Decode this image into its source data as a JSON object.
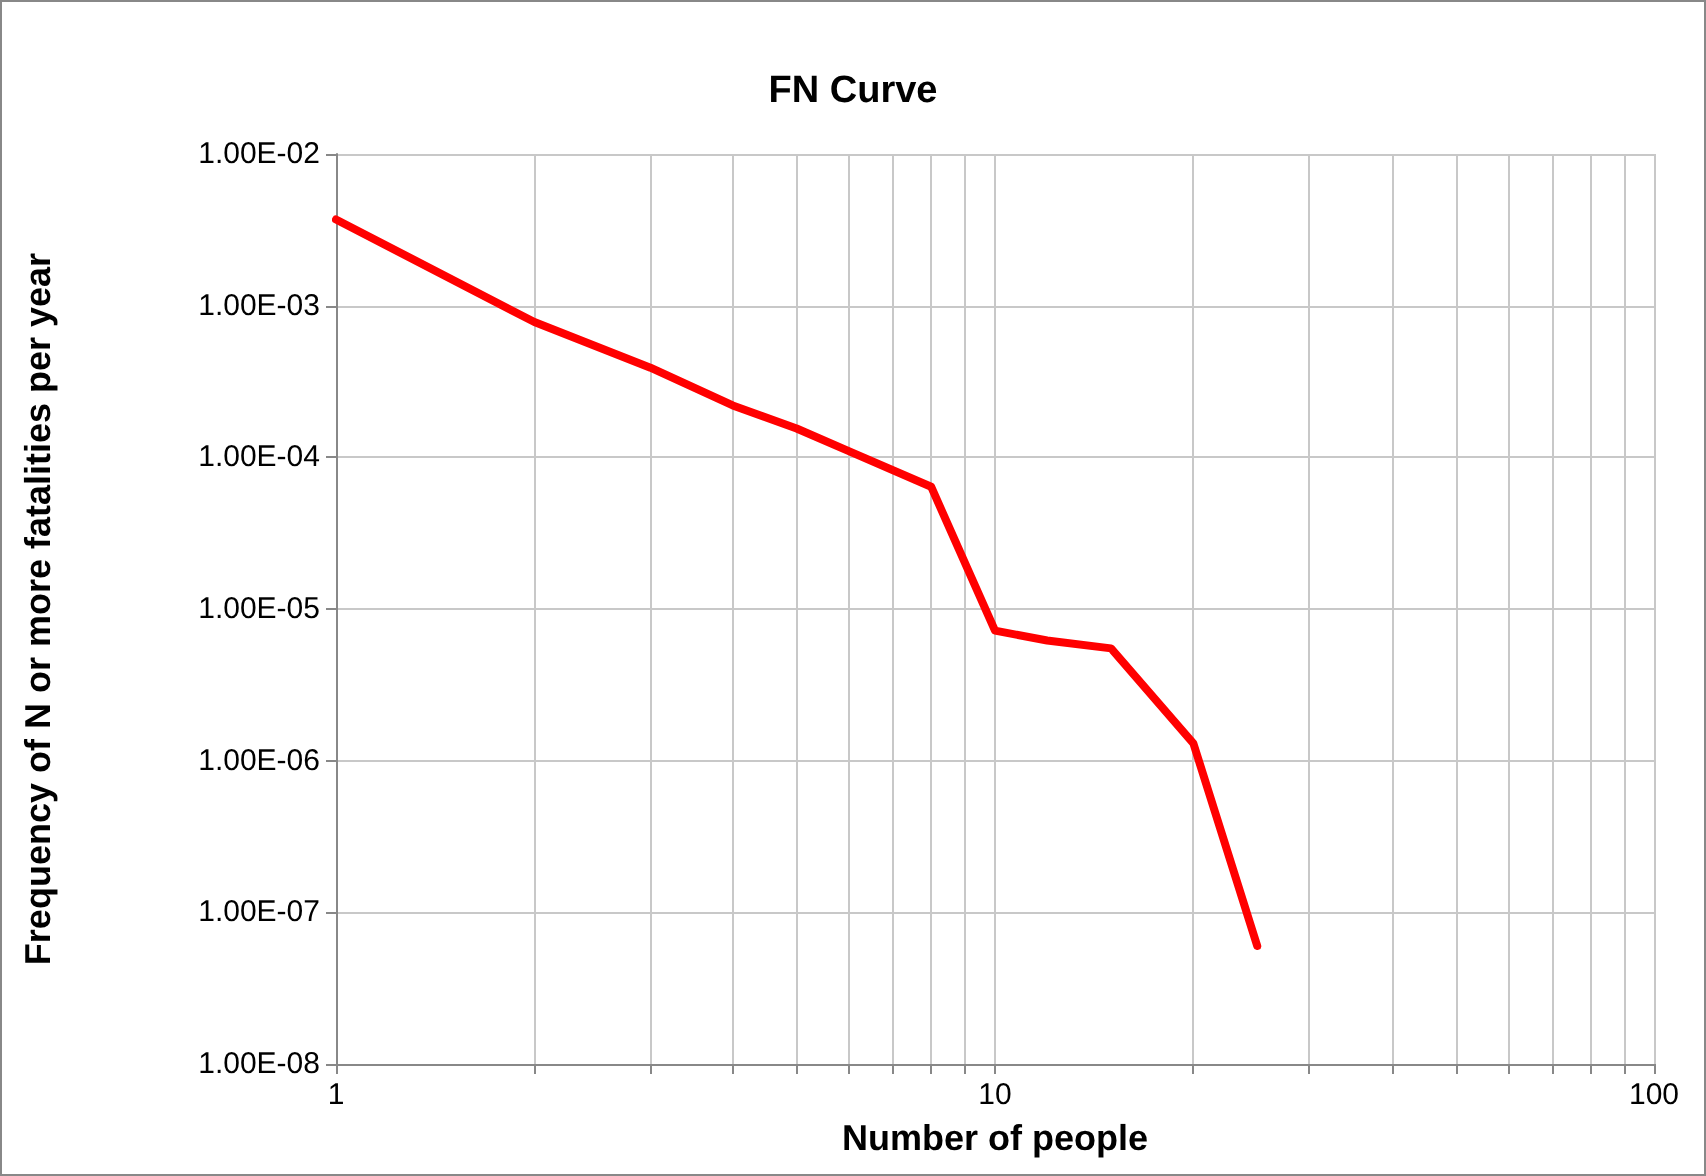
{
  "chart_data": {
    "type": "line",
    "title": "FN Curve",
    "xlabel": "Number of people",
    "ylabel": "Frequency of N or more fatalities per year",
    "x": [
      1,
      2,
      3,
      4,
      5,
      6,
      8,
      10,
      12,
      15,
      20,
      25
    ],
    "series": [
      {
        "color": "#ff0000",
        "values": [
          0.0037,
          0.00078,
          0.00039,
          0.00022,
          0.000155,
          0.00011,
          6.4e-05,
          7.2e-06,
          6.2e-06,
          5.5e-06,
          1.3e-06,
          6e-08
        ]
      }
    ],
    "log": "xy",
    "xlim": [
      1,
      100
    ],
    "ylim": [
      1e-08,
      0.01
    ],
    "xticks": [
      1,
      {
        "value": 2,
        "label": null
      },
      {
        "value": 3,
        "label": null
      },
      {
        "value": 4,
        "label": null
      },
      {
        "value": 5,
        "label": null
      },
      {
        "value": 6,
        "label": null
      },
      {
        "value": 7,
        "label": null
      },
      {
        "value": 8,
        "label": null
      },
      {
        "value": 9,
        "label": null
      },
      10,
      {
        "value": 20,
        "label": null
      },
      {
        "value": 30,
        "label": null
      },
      {
        "value": 40,
        "label": null
      },
      {
        "value": 50,
        "label": null
      },
      {
        "value": 60,
        "label": null
      },
      {
        "value": 70,
        "label": null
      },
      {
        "value": 80,
        "label": null
      },
      {
        "value": 90,
        "label": null
      },
      100
    ],
    "yticks": [
      {
        "value": 1e-08,
        "label": "1.00E-08"
      },
      {
        "value": 1e-07,
        "label": "1.00E-07"
      },
      {
        "value": 1e-06,
        "label": "1.00E-06"
      },
      {
        "value": 1e-05,
        "label": "1.00E-05"
      },
      {
        "value": 0.0001,
        "label": "1.00E-04"
      },
      {
        "value": 0.001,
        "label": "1.00E-03"
      },
      {
        "value": 0.01,
        "label": "1.00E-02"
      }
    ],
    "grid": true,
    "marker": "none",
    "line_style": "solid"
  }
}
